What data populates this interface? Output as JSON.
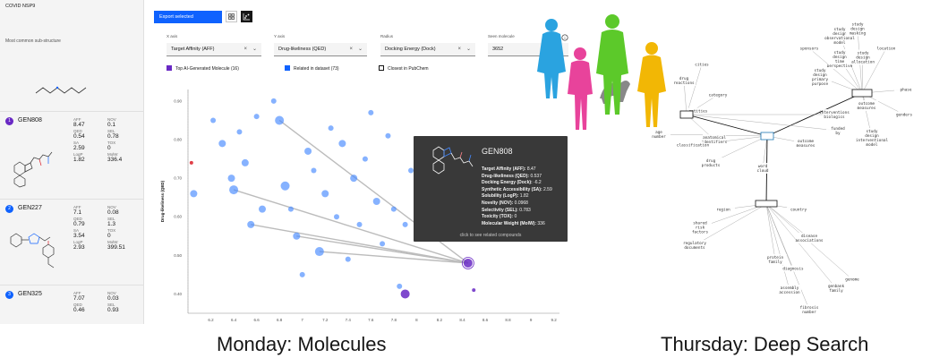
{
  "sidebar": {
    "title": "COVID NSP9",
    "subtitle": "Most common sub-structure",
    "cards": [
      {
        "num": "1",
        "name": "GEN808",
        "color": "#6929c4",
        "props": [
          [
            "AFF",
            "8.47"
          ],
          [
            "NOV",
            "0.1"
          ],
          [
            "QED",
            "0.54"
          ],
          [
            "SEL",
            "0.78"
          ],
          [
            "SA",
            "2.59"
          ],
          [
            "TOX",
            "0"
          ],
          [
            "LogP",
            "1.82"
          ],
          [
            "MolW",
            "336.4"
          ]
        ]
      },
      {
        "num": "2",
        "name": "GEN227",
        "color": "#0f62fe",
        "props": [
          [
            "AFF",
            "7.1"
          ],
          [
            "NOV",
            "0.08"
          ],
          [
            "QED",
            "0.79"
          ],
          [
            "SEL",
            "1.3"
          ],
          [
            "SA",
            "3.54"
          ],
          [
            "TOX",
            "0"
          ],
          [
            "LogP",
            "2.93"
          ],
          [
            "MolW",
            "399.51"
          ]
        ]
      },
      {
        "num": "3",
        "name": "GEN325",
        "color": "#0f62fe",
        "props": [
          [
            "AFF",
            "7.07"
          ],
          [
            "NOV",
            "0.03"
          ],
          [
            "QED",
            "0.46"
          ],
          [
            "SEL",
            "0.93"
          ]
        ]
      }
    ]
  },
  "toolbar": {
    "export_label": "Export selected"
  },
  "controls": {
    "xaxis": {
      "label": "X axis",
      "value": "Target Affinity (AFF)"
    },
    "yaxis": {
      "label": "Y axis",
      "value": "Drug-likeliness (QED)"
    },
    "radius": {
      "label": "Radius",
      "value": "Docking Energy (Dock)"
    },
    "seen": {
      "label": "Seen molecule",
      "value": "3652"
    }
  },
  "legend": {
    "top": "Top AI-Generated Molecule (16)",
    "related": "Related in dataset (73)",
    "closest": "Closest in PubChem"
  },
  "colors": {
    "top": "#6929c4",
    "related": "#4589ff",
    "highlight": "#da1e28"
  },
  "chart_data": {
    "type": "scatter",
    "ylabel": "Drug-likeliness (QED)",
    "x_ticks": [
      "6.2",
      "6.4",
      "6.6",
      "6.8",
      "7",
      "7.2",
      "7.4",
      "7.6",
      "7.8",
      "8",
      "8.2",
      "8.4",
      "8.6",
      "8.8",
      "9",
      "9.2"
    ],
    "y_ticks": [
      "0.90",
      "0.80",
      "0.70",
      "0.60",
      "0.50",
      "0.40"
    ],
    "xlim": [
      6.0,
      9.25
    ],
    "ylim": [
      0.35,
      0.93
    ],
    "points": [
      {
        "x": 6.03,
        "y": 0.74,
        "r": 2,
        "g": "highlight"
      },
      {
        "x": 6.05,
        "y": 0.66,
        "r": 4,
        "g": "related"
      },
      {
        "x": 6.22,
        "y": 0.85,
        "r": 3,
        "g": "related"
      },
      {
        "x": 6.3,
        "y": 0.79,
        "r": 4,
        "g": "related"
      },
      {
        "x": 6.38,
        "y": 0.7,
        "r": 4,
        "g": "related"
      },
      {
        "x": 6.4,
        "y": 0.67,
        "r": 5,
        "g": "related"
      },
      {
        "x": 6.45,
        "y": 0.82,
        "r": 3,
        "g": "related"
      },
      {
        "x": 6.5,
        "y": 0.74,
        "r": 4,
        "g": "related"
      },
      {
        "x": 6.55,
        "y": 0.58,
        "r": 4,
        "g": "related"
      },
      {
        "x": 6.6,
        "y": 0.86,
        "r": 3,
        "g": "related"
      },
      {
        "x": 6.65,
        "y": 0.62,
        "r": 4,
        "g": "related"
      },
      {
        "x": 6.75,
        "y": 0.9,
        "r": 3,
        "g": "related"
      },
      {
        "x": 6.8,
        "y": 0.85,
        "r": 5,
        "g": "related"
      },
      {
        "x": 6.85,
        "y": 0.68,
        "r": 5,
        "g": "related"
      },
      {
        "x": 6.9,
        "y": 0.62,
        "r": 3,
        "g": "related"
      },
      {
        "x": 6.95,
        "y": 0.55,
        "r": 4,
        "g": "related"
      },
      {
        "x": 7.0,
        "y": 0.45,
        "r": 3,
        "g": "related"
      },
      {
        "x": 7.05,
        "y": 0.77,
        "r": 4,
        "g": "related"
      },
      {
        "x": 7.1,
        "y": 0.72,
        "r": 3,
        "g": "related"
      },
      {
        "x": 7.15,
        "y": 0.51,
        "r": 5,
        "g": "related"
      },
      {
        "x": 7.2,
        "y": 0.66,
        "r": 4,
        "g": "related"
      },
      {
        "x": 7.25,
        "y": 0.83,
        "r": 3,
        "g": "related"
      },
      {
        "x": 7.3,
        "y": 0.6,
        "r": 3,
        "g": "related"
      },
      {
        "x": 7.35,
        "y": 0.79,
        "r": 4,
        "g": "related"
      },
      {
        "x": 7.4,
        "y": 0.49,
        "r": 3,
        "g": "related"
      },
      {
        "x": 7.45,
        "y": 0.7,
        "r": 4,
        "g": "related"
      },
      {
        "x": 7.5,
        "y": 0.58,
        "r": 3,
        "g": "related"
      },
      {
        "x": 7.55,
        "y": 0.75,
        "r": 3,
        "g": "related"
      },
      {
        "x": 7.6,
        "y": 0.87,
        "r": 3,
        "g": "related"
      },
      {
        "x": 7.65,
        "y": 0.64,
        "r": 4,
        "g": "related"
      },
      {
        "x": 7.7,
        "y": 0.53,
        "r": 3,
        "g": "related"
      },
      {
        "x": 7.75,
        "y": 0.81,
        "r": 3,
        "g": "related"
      },
      {
        "x": 7.8,
        "y": 0.62,
        "r": 3,
        "g": "related"
      },
      {
        "x": 7.85,
        "y": 0.42,
        "r": 3,
        "g": "related"
      },
      {
        "x": 7.9,
        "y": 0.58,
        "r": 3,
        "g": "related"
      },
      {
        "x": 7.9,
        "y": 0.4,
        "r": 5,
        "g": "top"
      },
      {
        "x": 7.95,
        "y": 0.72,
        "r": 3,
        "g": "related"
      },
      {
        "x": 8.0,
        "y": 0.68,
        "r": 3,
        "g": "related"
      },
      {
        "x": 8.45,
        "y": 0.48,
        "r": 5,
        "g": "top"
      },
      {
        "x": 8.5,
        "y": 0.41,
        "r": 2,
        "g": "top"
      },
      {
        "x": 8.6,
        "y": 0.56,
        "r": 2,
        "g": "top"
      }
    ]
  },
  "tooltip": {
    "title": "GEN808",
    "lines": [
      {
        "k": "Target Affinity (AFF):",
        "v": "8.47"
      },
      {
        "k": "Drug-likeliness (QED):",
        "v": "0.537"
      },
      {
        "k": "Docking Energy (Dock):",
        "v": "-6.2"
      },
      {
        "k": "Synthetic Accessibility (SA):",
        "v": "2.59"
      },
      {
        "k": "Solubility (LogP):",
        "v": "1.82"
      },
      {
        "k": "Novelty (NOV):",
        "v": "0.0968"
      },
      {
        "k": "Selectivity (SEL):",
        "v": "0.783"
      },
      {
        "k": "Toxicity (TOX):",
        "v": "0"
      },
      {
        "k": "Molecular Weight (MolW):",
        "v": "336"
      }
    ],
    "footer": "click to see related compounds"
  },
  "captions": {
    "left": "Monday: Molecules",
    "right": "Thursday: Deep Search"
  },
  "deep_search": {
    "colors": {
      "silhouette_blue": "#2aa3e0",
      "silhouette_pink": "#e8439b",
      "silhouette_green": "#5cc92a",
      "silhouette_yellow": "#f2b705"
    },
    "nodes": [
      "study\ndesign\nobservational\nmodel",
      "study\ndesign\nmasking",
      "study\ndesign\ntime\nperspective",
      "study\ndesign\nallocation",
      "location",
      "sponsors",
      "study\ndesign\nprimary\npurpose",
      "outcome\nmeasures",
      "study\ndesign\ninterventional\nmodel",
      "phase",
      "genders",
      "cities",
      "drug\nreactions",
      "category",
      "entities",
      "interventions\nbiologics",
      "funded\nby",
      "anatomical\nidentifiers",
      "age\nnumber",
      "classification",
      "drug\nproducts",
      "word\ncloud",
      "outcome\nmeasures",
      "shared\nrisk\nfactors",
      "regulatory\ndocuments",
      "disease\nassociations",
      "diagnosis",
      "protein\nfamily",
      "region",
      "country",
      "genbank\nfamily",
      "assembly\naccession",
      "genome",
      "fibrosis\nnumber"
    ]
  }
}
